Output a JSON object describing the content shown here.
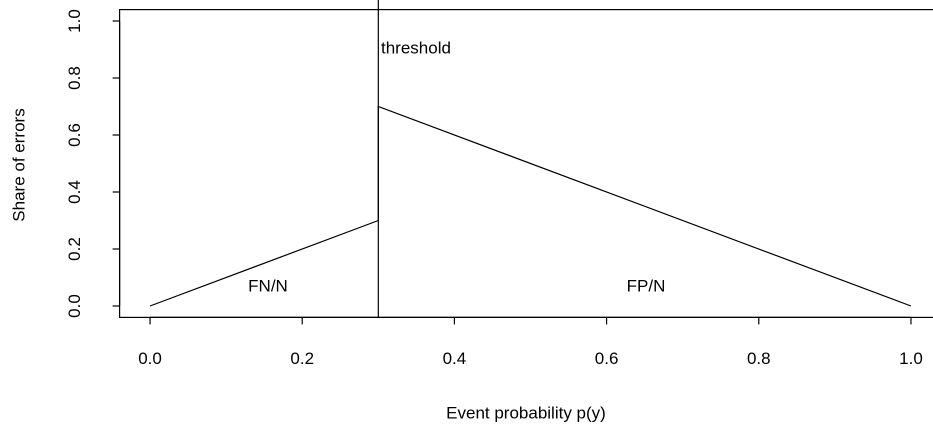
{
  "chart_data": {
    "type": "line",
    "xlabel": "Event probability p(y)",
    "ylabel": "Share of errors",
    "x": [
      0,
      0.3,
      0.3,
      1
    ],
    "series": [
      {
        "color": "#000000",
        "values": [
          0,
          0.3,
          0.7,
          0
        ]
      }
    ],
    "threshold": 0.3,
    "annotations": [
      "threshold",
      "FN/N",
      "FP/N"
    ],
    "xlim": [
      -0.04,
      1.04
    ],
    "ylim": [
      -0.04,
      1.04
    ],
    "xticks": [
      {
        "value": 0,
        "label": "0.0"
      },
      0.2,
      0.4,
      0.6,
      0.8,
      {
        "value": 1,
        "label": "1.0"
      }
    ],
    "yticks": [
      {
        "value": 0,
        "label": "0.0"
      },
      0.2,
      0.4,
      0.6,
      0.8,
      {
        "value": 1,
        "label": "1.0"
      }
    ]
  }
}
